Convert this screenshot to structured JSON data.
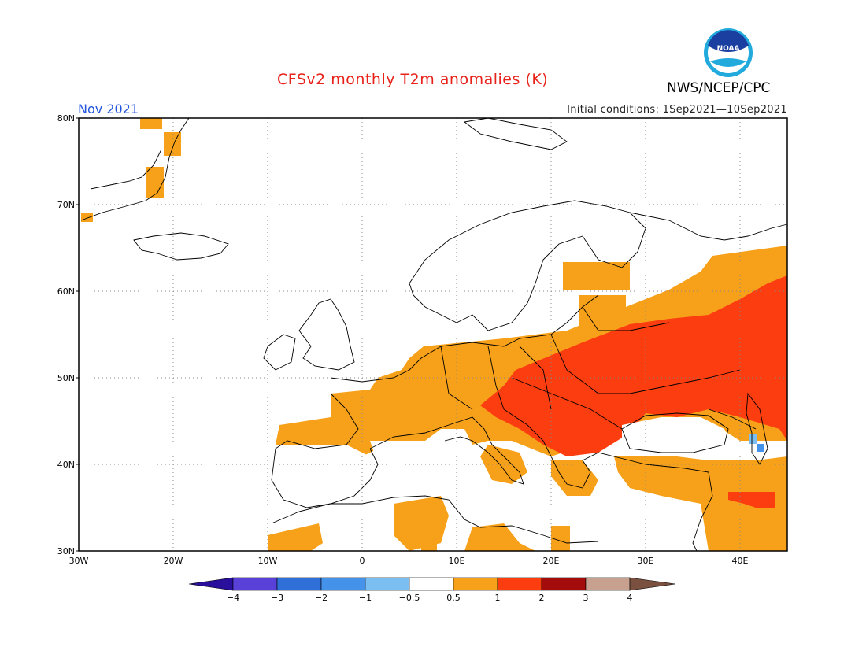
{
  "title": "CFSv2 monthly T2m anomalies (K)",
  "agency": "NWS/NCEP/CPC",
  "logo_text": "NOAA",
  "valid_month": "Nov 2021",
  "initial_conditions": "Initial conditions: 1Sep2021—10Sep2021",
  "map": {
    "lat_labels": [
      "80N",
      "70N",
      "60N",
      "50N",
      "40N",
      "30N"
    ],
    "lon_labels": [
      "30W",
      "20W",
      "10W",
      "0",
      "10E",
      "20E",
      "30E",
      "40E"
    ],
    "lon_range": [
      -30,
      45
    ],
    "lat_range": [
      30,
      80
    ],
    "grid": "dotted"
  },
  "colorbar": {
    "ticks": [
      "−4",
      "−3",
      "−2",
      "−1",
      "−0.5",
      "0.5",
      "1",
      "2",
      "3",
      "4"
    ],
    "colors": [
      "#2a0e9c",
      "#5840d8",
      "#2f6fd8",
      "#4592ea",
      "#7bbef1",
      "#ffffff",
      "#f7a11a",
      "#fc3d10",
      "#a40c0c",
      "#c8a090",
      "#7a5040"
    ]
  },
  "anomaly_colors": {
    "plus_05_1": "#f7a11a",
    "plus_1_2": "#fc3d10",
    "minus_05_1": "#7bbef1",
    "minus_1_2": "#4592ea"
  }
}
